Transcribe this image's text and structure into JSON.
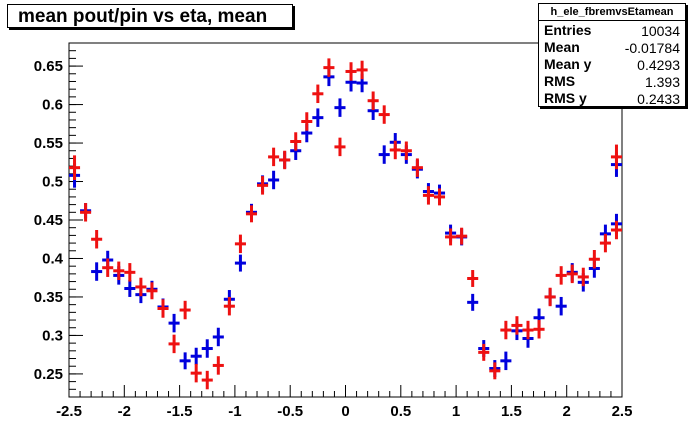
{
  "title": "mean pout/pin vs eta, mean",
  "stats": {
    "name": "h_ele_fbremvsEtamean",
    "rows": [
      {
        "label": "Entries",
        "value": "10034"
      },
      {
        "label": "Mean",
        "value": "-0.01784"
      },
      {
        "label": "Mean y",
        "value": "0.4293"
      },
      {
        "label": "RMS",
        "value": "1.393"
      },
      {
        "label": "RMS y",
        "value": "0.2433"
      }
    ]
  },
  "chart_data": {
    "type": "scatter",
    "xlim": [
      -2.5,
      2.5
    ],
    "ylim": [
      0.22,
      0.68
    ],
    "x_ticks": [
      "-2.5",
      "-2",
      "-1.5",
      "-1",
      "-0.5",
      "0",
      "0.5",
      "1",
      "1.5",
      "2",
      "2.5"
    ],
    "y_ticks": [
      "0.25",
      "0.3",
      "0.35",
      "0.4",
      "0.45",
      "0.5",
      "0.55",
      "0.6",
      "0.65"
    ],
    "grid": false,
    "bin_halfwidth": 0.05,
    "series": [
      {
        "color": "#0000dd",
        "points": [
          [
            -2.45,
            0.508,
            0.016
          ],
          [
            -2.35,
            0.462,
            0.01
          ],
          [
            -2.25,
            0.383,
            0.012
          ],
          [
            -2.15,
            0.398,
            0.012
          ],
          [
            -2.05,
            0.378,
            0.012
          ],
          [
            -1.95,
            0.361,
            0.011
          ],
          [
            -1.85,
            0.353,
            0.011
          ],
          [
            -1.75,
            0.36,
            0.011
          ],
          [
            -1.65,
            0.337,
            0.011
          ],
          [
            -1.55,
            0.316,
            0.012
          ],
          [
            -1.45,
            0.267,
            0.011
          ],
          [
            -1.35,
            0.273,
            0.011
          ],
          [
            -1.25,
            0.283,
            0.012
          ],
          [
            -1.15,
            0.298,
            0.012
          ],
          [
            -1.05,
            0.347,
            0.012
          ],
          [
            -0.95,
            0.394,
            0.011
          ],
          [
            -0.85,
            0.46,
            0.011
          ],
          [
            -0.75,
            0.497,
            0.011
          ],
          [
            -0.65,
            0.502,
            0.012
          ],
          [
            -0.55,
            0.528,
            0.011
          ],
          [
            -0.45,
            0.54,
            0.012
          ],
          [
            -0.35,
            0.563,
            0.012
          ],
          [
            -0.25,
            0.583,
            0.012
          ],
          [
            -0.15,
            0.636,
            0.012
          ],
          [
            -0.05,
            0.596,
            0.012
          ],
          [
            0.05,
            0.629,
            0.012
          ],
          [
            0.15,
            0.628,
            0.012
          ],
          [
            0.25,
            0.592,
            0.012
          ],
          [
            0.35,
            0.535,
            0.012
          ],
          [
            0.45,
            0.551,
            0.012
          ],
          [
            0.55,
            0.535,
            0.012
          ],
          [
            0.65,
            0.516,
            0.012
          ],
          [
            0.75,
            0.487,
            0.011
          ],
          [
            0.85,
            0.485,
            0.011
          ],
          [
            0.95,
            0.433,
            0.011
          ],
          [
            1.05,
            0.428,
            0.011
          ],
          [
            1.15,
            0.343,
            0.011
          ],
          [
            1.25,
            0.283,
            0.011
          ],
          [
            1.35,
            0.257,
            0.011
          ],
          [
            1.45,
            0.267,
            0.012
          ],
          [
            1.55,
            0.306,
            0.012
          ],
          [
            1.65,
            0.296,
            0.012
          ],
          [
            1.75,
            0.323,
            0.012
          ],
          [
            1.85,
            0.35,
            0.011
          ],
          [
            1.95,
            0.338,
            0.012
          ],
          [
            2.05,
            0.382,
            0.012
          ],
          [
            2.15,
            0.369,
            0.012
          ],
          [
            2.25,
            0.387,
            0.012
          ],
          [
            2.35,
            0.432,
            0.012
          ],
          [
            2.45,
            0.445,
            0.013
          ],
          [
            2.45,
            0.522,
            0.016
          ]
        ]
      },
      {
        "color": "#ee1111",
        "points": [
          [
            -2.45,
            0.518,
            0.016
          ],
          [
            -2.35,
            0.46,
            0.012
          ],
          [
            -2.25,
            0.425,
            0.012
          ],
          [
            -2.15,
            0.388,
            0.012
          ],
          [
            -2.05,
            0.384,
            0.012
          ],
          [
            -1.95,
            0.382,
            0.012
          ],
          [
            -1.85,
            0.363,
            0.012
          ],
          [
            -1.75,
            0.358,
            0.011
          ],
          [
            -1.65,
            0.335,
            0.012
          ],
          [
            -1.55,
            0.289,
            0.012
          ],
          [
            -1.45,
            0.333,
            0.012
          ],
          [
            -1.35,
            0.251,
            0.012
          ],
          [
            -1.25,
            0.242,
            0.012
          ],
          [
            -1.15,
            0.261,
            0.012
          ],
          [
            -1.05,
            0.338,
            0.012
          ],
          [
            -0.95,
            0.419,
            0.012
          ],
          [
            -0.85,
            0.458,
            0.011
          ],
          [
            -0.75,
            0.495,
            0.012
          ],
          [
            -0.65,
            0.532,
            0.012
          ],
          [
            -0.55,
            0.528,
            0.012
          ],
          [
            -0.45,
            0.552,
            0.012
          ],
          [
            -0.35,
            0.578,
            0.012
          ],
          [
            -0.25,
            0.614,
            0.012
          ],
          [
            -0.15,
            0.648,
            0.012
          ],
          [
            -0.05,
            0.545,
            0.012
          ],
          [
            0.05,
            0.643,
            0.012
          ],
          [
            0.15,
            0.645,
            0.012
          ],
          [
            0.25,
            0.605,
            0.012
          ],
          [
            0.35,
            0.587,
            0.012
          ],
          [
            0.45,
            0.541,
            0.012
          ],
          [
            0.55,
            0.54,
            0.012
          ],
          [
            0.65,
            0.518,
            0.012
          ],
          [
            0.75,
            0.482,
            0.012
          ],
          [
            0.85,
            0.48,
            0.011
          ],
          [
            0.95,
            0.428,
            0.011
          ],
          [
            1.05,
            0.429,
            0.011
          ],
          [
            1.15,
            0.374,
            0.011
          ],
          [
            1.25,
            0.278,
            0.011
          ],
          [
            1.35,
            0.254,
            0.011
          ],
          [
            1.45,
            0.307,
            0.012
          ],
          [
            1.55,
            0.313,
            0.012
          ],
          [
            1.65,
            0.307,
            0.012
          ],
          [
            1.75,
            0.308,
            0.012
          ],
          [
            1.85,
            0.35,
            0.012
          ],
          [
            1.95,
            0.378,
            0.012
          ],
          [
            2.05,
            0.38,
            0.012
          ],
          [
            2.15,
            0.376,
            0.012
          ],
          [
            2.25,
            0.399,
            0.012
          ],
          [
            2.35,
            0.42,
            0.012
          ],
          [
            2.45,
            0.437,
            0.012
          ],
          [
            2.45,
            0.532,
            0.016
          ]
        ]
      }
    ]
  }
}
